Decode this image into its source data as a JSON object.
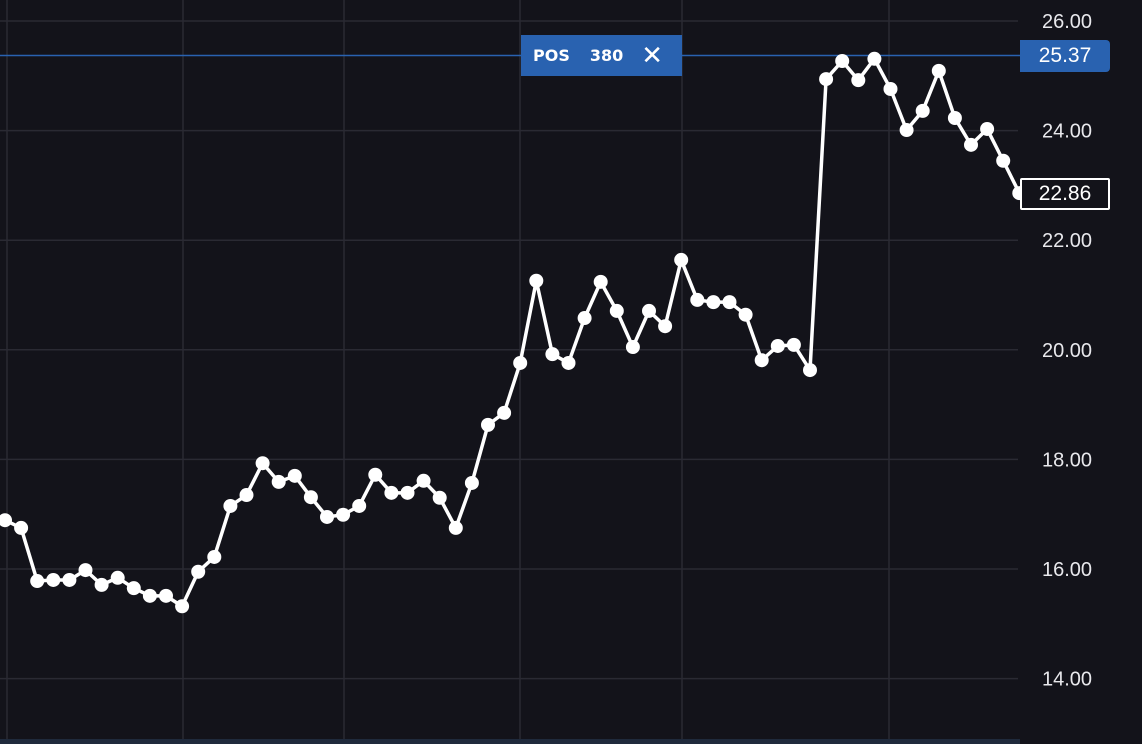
{
  "chart_data": {
    "type": "line",
    "title": "",
    "xlabel": "",
    "ylabel": "",
    "ylim": [
      13,
      26.4
    ],
    "y_ticks": [
      "26.00",
      "24.00",
      "22.00",
      "20.00",
      "18.00",
      "16.00",
      "14.00"
    ],
    "grid": true,
    "markers": true,
    "line_color": "#ffffff",
    "values": [
      16.89,
      16.75,
      15.78,
      15.8,
      15.8,
      15.98,
      15.71,
      15.84,
      15.65,
      15.51,
      15.51,
      15.32,
      15.95,
      16.22,
      17.15,
      17.35,
      17.93,
      17.59,
      17.7,
      17.31,
      16.95,
      16.99,
      17.15,
      17.72,
      17.39,
      17.39,
      17.61,
      17.3,
      16.75,
      17.57,
      18.63,
      18.85,
      19.76,
      21.26,
      19.92,
      19.76,
      20.58,
      21.24,
      20.71,
      20.05,
      20.71,
      20.43,
      21.64,
      20.91,
      20.87,
      20.87,
      20.64,
      19.81,
      20.07,
      20.09,
      19.63,
      24.94,
      25.27,
      24.92,
      25.31,
      24.76,
      24.01,
      24.36,
      25.09,
      24.23,
      23.74,
      24.03,
      23.45,
      22.86
    ],
    "position_line": {
      "price": 25.37,
      "label": "25.37"
    },
    "last_price": {
      "price": 22.86,
      "label": "22.86"
    }
  },
  "position": {
    "label": "POS",
    "quantity": "380",
    "close_icon": "close-icon"
  },
  "colors": {
    "background": "#13131a",
    "grid": "#2a2a33",
    "position": "#2962b0",
    "line": "#ffffff"
  }
}
